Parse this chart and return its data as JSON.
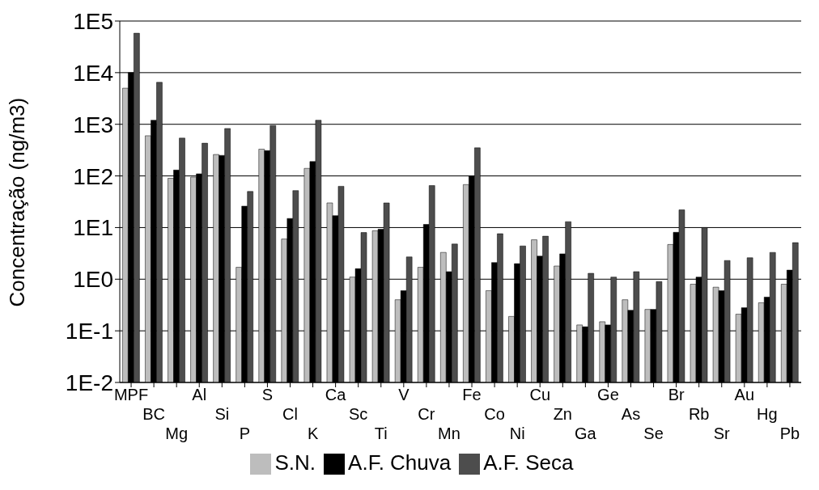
{
  "chart_data": {
    "type": "bar",
    "ylabel": "Concentração (ng/m3)",
    "log": "y",
    "grid": "y",
    "legend": "bottom",
    "categories": [
      "MPF",
      "BC",
      "Mg",
      "Al",
      "Si",
      "P",
      "S",
      "Cl",
      "K",
      "Ca",
      "Sc",
      "Ti",
      "V",
      "Cr",
      "Mn",
      "Fe",
      "Co",
      "Ni",
      "Cu",
      "Zn",
      "Ga",
      "Ge",
      "As",
      "Se",
      "Br",
      "Rb",
      "Sr",
      "Au",
      "Hg",
      "Pb"
    ],
    "ylim": [
      0.01,
      100000
    ],
    "yticks": [
      {
        "value": 0.01,
        "label": "1E-2"
      },
      {
        "value": 0.1,
        "label": "1E-1"
      },
      {
        "value": 1,
        "label": "1E0"
      },
      {
        "value": 10,
        "label": "1E1"
      },
      {
        "value": 100,
        "label": "1E2"
      },
      {
        "value": 1000,
        "label": "1E3"
      },
      {
        "value": 10000,
        "label": "1E4"
      },
      {
        "value": 100000,
        "label": "1E5"
      }
    ],
    "series": [
      {
        "name": "S.N.",
        "color": "#bdbdbd",
        "values": [
          5000,
          600,
          90,
          95,
          260,
          1.7,
          330,
          6,
          140,
          30,
          1.1,
          8.7,
          0.4,
          1.7,
          3.3,
          68,
          0.6,
          0.19,
          5.8,
          1.8,
          0.13,
          0.15,
          0.4,
          0.26,
          4.7,
          0.8,
          0.7,
          0.21,
          0.35,
          0.8
        ]
      },
      {
        "name": "A.F. Chuva",
        "color": "#000000",
        "values": [
          10000,
          1200,
          130,
          110,
          250,
          26,
          310,
          15,
          190,
          17,
          1.6,
          9.3,
          0.6,
          11.5,
          1.4,
          100,
          2.1,
          2,
          2.8,
          3.1,
          0.12,
          0.13,
          0.25,
          0.26,
          8.1,
          1.1,
          0.6,
          0.28,
          0.45,
          1.5
        ]
      },
      {
        "name": "A.F. Seca",
        "color": "#4d4d4d",
        "values": [
          58000,
          6500,
          540,
          430,
          830,
          50,
          950,
          52,
          1200,
          63,
          8,
          30,
          2.7,
          65,
          4.8,
          350,
          7.6,
          4.4,
          6.8,
          13,
          1.3,
          1.1,
          1.4,
          0.9,
          22,
          10,
          2.3,
          2.6,
          3.3,
          5.1
        ]
      }
    ]
  }
}
